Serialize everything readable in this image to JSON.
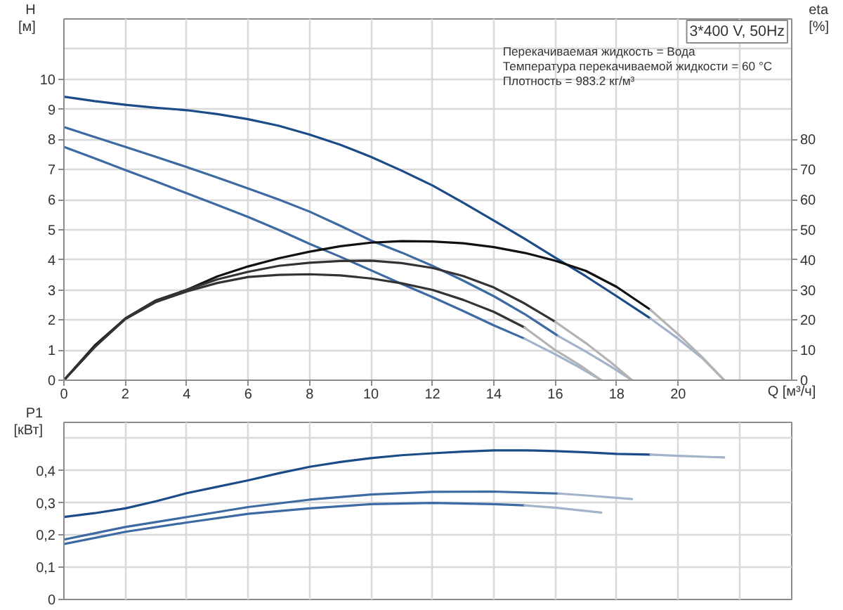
{
  "chart_data": [
    {
      "type": "line",
      "title": "3*400 V, 50Hz",
      "annotations": [
        "Перекачиваемая жидкость = Вода",
        "Температура перекачиваемой жидкости = 60 °C",
        "Плотность = 983.2 кг/м³"
      ],
      "xlabel": "Q [м³/ч]",
      "ylabel": "H\n[м]",
      "y2label": "eta\n[%]",
      "xlim": [
        0,
        23.7
      ],
      "xticks": [
        0,
        2,
        4,
        6,
        8,
        10,
        12,
        14,
        16,
        18,
        20,
        {
          "value": 22,
          "label": null
        }
      ],
      "ylim": [
        0,
        12
      ],
      "yticks": [
        0,
        1,
        2,
        3,
        4,
        5,
        6,
        7,
        8,
        9,
        10,
        {
          "value": 11,
          "label": null
        }
      ],
      "y2lim": [
        0,
        120
      ],
      "y2ticks": [
        0,
        10,
        20,
        30,
        40,
        50,
        60,
        70,
        80
      ],
      "grid": true,
      "series": [
        {
          "color": "#1b4c88",
          "x": [
            0,
            1,
            2,
            3,
            4,
            5,
            6,
            7,
            8,
            9,
            10,
            11,
            12,
            13,
            14,
            15,
            16,
            17,
            18,
            19.1
          ],
          "values": [
            9.42,
            9.27,
            9.15,
            9.05,
            8.97,
            8.84,
            8.67,
            8.45,
            8.16,
            7.82,
            7.42,
            6.96,
            6.47,
            5.9,
            5.3,
            4.7,
            4.07,
            3.45,
            2.79,
            2.05
          ]
        },
        {
          "color": "#a3b3ca",
          "x": [
            19.1,
            20,
            20.8,
            21.5
          ],
          "values": [
            2.05,
            1.38,
            0.72,
            0
          ]
        },
        {
          "color": "#3d6aa3",
          "x": [
            0,
            1,
            2,
            3,
            4,
            5,
            6,
            7,
            8,
            9,
            10,
            11,
            12,
            13,
            14,
            15,
            16.1
          ],
          "values": [
            8.41,
            8.08,
            7.75,
            7.42,
            7.08,
            6.73,
            6.37,
            6.0,
            5.6,
            5.13,
            4.64,
            4.24,
            3.8,
            3.31,
            2.79,
            2.2,
            1.47
          ]
        },
        {
          "color": "#a3b3ca",
          "x": [
            16.1,
            17,
            17.8,
            18.5
          ],
          "values": [
            1.47,
            0.95,
            0.46,
            0
          ]
        },
        {
          "color": "#3d6aa3",
          "x": [
            0,
            1,
            2,
            3,
            4,
            5,
            6,
            7,
            8,
            9,
            10,
            11,
            12,
            13,
            14,
            15
          ],
          "values": [
            7.75,
            7.37,
            6.98,
            6.6,
            6.21,
            5.82,
            5.42,
            4.99,
            4.53,
            4.1,
            3.65,
            3.2,
            2.76,
            2.3,
            1.82,
            1.38
          ]
        },
        {
          "color": "#a3b3ca",
          "x": [
            15,
            16,
            16.8,
            17.5
          ],
          "values": [
            1.38,
            0.86,
            0.42,
            0
          ]
        },
        {
          "color": "#111111",
          "axis": "y2",
          "x": [
            0,
            1,
            2,
            3,
            4,
            5,
            6,
            7,
            8,
            9,
            10,
            11,
            12,
            13,
            14,
            15,
            16,
            17,
            18,
            19.1
          ],
          "values": [
            0,
            11.5,
            20.5,
            26.5,
            30,
            34.5,
            37.8,
            40.5,
            42.7,
            44.5,
            45.7,
            46.2,
            46.1,
            45.5,
            44.2,
            42.3,
            39.7,
            36.3,
            31,
            23.4
          ]
        },
        {
          "color": "#b4b4b4",
          "axis": "y2",
          "x": [
            19.1,
            20,
            20.8,
            21.5
          ],
          "values": [
            23.4,
            15.3,
            7.5,
            0
          ]
        },
        {
          "color": "#333333",
          "axis": "y2",
          "x": [
            0,
            1,
            2,
            3,
            4,
            5,
            6,
            7,
            8,
            9,
            10,
            11,
            12,
            13,
            14,
            15,
            16
          ],
          "values": [
            0,
            11,
            20.5,
            26.5,
            30,
            33.5,
            36,
            38,
            39,
            39.6,
            39.7,
            38.9,
            37.3,
            34.6,
            30.8,
            25.5,
            19.4
          ]
        },
        {
          "color": "#b4b4b4",
          "axis": "y2",
          "x": [
            16,
            17,
            17.8,
            18.5
          ],
          "values": [
            19.4,
            12.3,
            6,
            0
          ]
        },
        {
          "color": "#333333",
          "axis": "y2",
          "x": [
            0,
            1,
            2,
            3,
            4,
            5,
            6,
            7,
            8,
            9,
            10,
            11,
            12,
            13,
            14,
            15
          ],
          "values": [
            0,
            11,
            20.3,
            26,
            29.5,
            32.3,
            34.3,
            35,
            35.2,
            34.8,
            33.8,
            32.2,
            30,
            26.7,
            22.7,
            17.5
          ]
        },
        {
          "color": "#b4b4b4",
          "axis": "y2",
          "x": [
            15,
            16,
            16.8,
            17.5
          ],
          "values": [
            17.5,
            10,
            5,
            0
          ]
        }
      ]
    },
    {
      "type": "line",
      "ylabel": "P1\n[кВт]",
      "xlim": [
        0,
        23.7
      ],
      "xticks": [
        0,
        2,
        4,
        6,
        8,
        10,
        12,
        14,
        16,
        18,
        20,
        22
      ],
      "ylim": [
        0,
        0.55
      ],
      "yticks": [
        0,
        {
          "value": 0.1,
          "label": "0,1"
        },
        {
          "value": 0.2,
          "label": "0,2"
        },
        {
          "value": 0.3,
          "label": "0,3"
        },
        {
          "value": 0.4,
          "label": "0,4"
        },
        {
          "value": 0.5,
          "label": null
        }
      ],
      "tick_labels": "y",
      "grid": true,
      "series": [
        {
          "color": "#1b4c88",
          "x": [
            0,
            1,
            2,
            3,
            4,
            5,
            6,
            7,
            8,
            9,
            10,
            11,
            12,
            13,
            14,
            15,
            16,
            17,
            18,
            19.1
          ],
          "values": [
            0.256,
            0.268,
            0.283,
            0.305,
            0.33,
            0.35,
            0.37,
            0.392,
            0.412,
            0.427,
            0.439,
            0.448,
            0.454,
            0.459,
            0.463,
            0.463,
            0.461,
            0.457,
            0.452,
            0.45
          ]
        },
        {
          "color": "#a3b3ca",
          "x": [
            19.1,
            20,
            21.5
          ],
          "values": [
            0.45,
            0.446,
            0.441
          ]
        },
        {
          "color": "#3d6aa3",
          "x": [
            0,
            2,
            4,
            6,
            8,
            10,
            12,
            14,
            16.1
          ],
          "values": [
            0.186,
            0.225,
            0.256,
            0.287,
            0.31,
            0.326,
            0.334,
            0.335,
            0.329
          ]
        },
        {
          "color": "#a3b3ca",
          "x": [
            16.1,
            17,
            18.5
          ],
          "values": [
            0.329,
            0.323,
            0.312
          ]
        },
        {
          "color": "#3d6aa3",
          "x": [
            0,
            2,
            4,
            6,
            8,
            10,
            12,
            14,
            15
          ],
          "values": [
            0.172,
            0.21,
            0.239,
            0.266,
            0.283,
            0.296,
            0.3,
            0.296,
            0.292
          ]
        },
        {
          "color": "#a3b3ca",
          "x": [
            15,
            16,
            17.5
          ],
          "values": [
            0.292,
            0.285,
            0.27
          ]
        }
      ]
    }
  ]
}
